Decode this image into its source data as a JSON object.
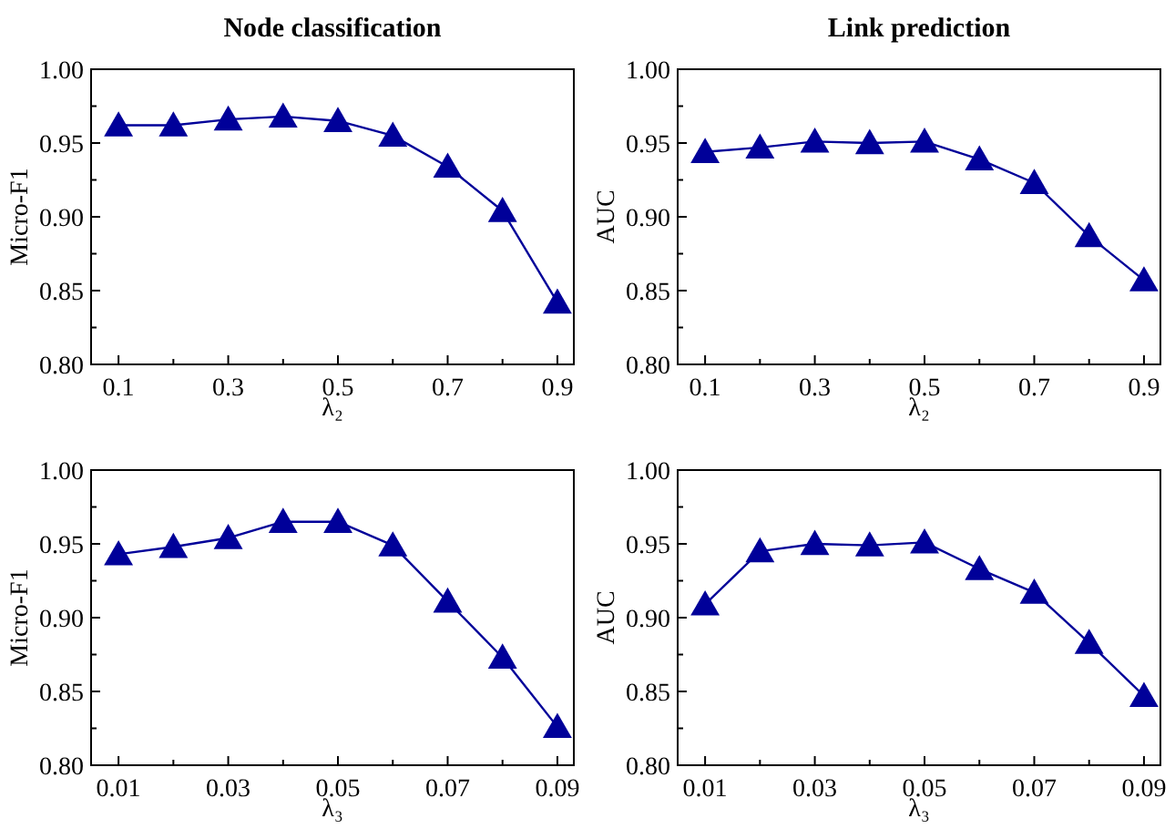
{
  "chart_data": [
    {
      "type": "line",
      "title": "Node classification",
      "xlabel": "λ₂",
      "ylabel": "Micro-F1",
      "x": [
        0.1,
        0.2,
        0.3,
        0.4,
        0.5,
        0.6,
        0.7,
        0.8,
        0.9
      ],
      "marker": "triangle",
      "grid": false,
      "series": [
        {
          "color": "#000099",
          "values": [
            0.962,
            0.962,
            0.966,
            0.968,
            0.965,
            0.955,
            0.934,
            0.904,
            0.842
          ]
        }
      ],
      "xlim": [
        0.05,
        0.93
      ],
      "xticks": [
        {
          "value": 0.1,
          "label": "0.1"
        },
        {
          "value": 0.2,
          "label": null
        },
        {
          "value": 0.3,
          "label": "0.3"
        },
        {
          "value": 0.4,
          "label": null
        },
        {
          "value": 0.5,
          "label": "0.5"
        },
        {
          "value": 0.6,
          "label": null
        },
        {
          "value": 0.7,
          "label": "0.7"
        },
        {
          "value": 0.8,
          "label": null
        },
        {
          "value": 0.9,
          "label": "0.9"
        }
      ],
      "ylim": [
        0.8,
        1.0
      ],
      "yticks": [
        {
          "value": 0.8,
          "label": "0.80"
        },
        {
          "value": 0.825,
          "label": null
        },
        {
          "value": 0.85,
          "label": "0.85"
        },
        {
          "value": 0.875,
          "label": null
        },
        {
          "value": 0.9,
          "label": "0.90"
        },
        {
          "value": 0.925,
          "label": null
        },
        {
          "value": 0.95,
          "label": "0.95"
        },
        {
          "value": 0.975,
          "label": null
        },
        {
          "value": 1.0,
          "label": "1.00"
        }
      ]
    },
    {
      "type": "line",
      "title": "Link prediction",
      "xlabel": "λ₂",
      "ylabel": "AUC",
      "x": [
        0.1,
        0.2,
        0.3,
        0.4,
        0.5,
        0.6,
        0.7,
        0.8,
        0.9
      ],
      "marker": "triangle",
      "grid": false,
      "series": [
        {
          "color": "#000099",
          "values": [
            0.944,
            0.947,
            0.951,
            0.95,
            0.951,
            0.939,
            0.923,
            0.887,
            0.857
          ]
        }
      ],
      "xlim": [
        0.05,
        0.93
      ],
      "xticks": [
        {
          "value": 0.1,
          "label": "0.1"
        },
        {
          "value": 0.2,
          "label": null
        },
        {
          "value": 0.3,
          "label": "0.3"
        },
        {
          "value": 0.4,
          "label": null
        },
        {
          "value": 0.5,
          "label": "0.5"
        },
        {
          "value": 0.6,
          "label": null
        },
        {
          "value": 0.7,
          "label": "0.7"
        },
        {
          "value": 0.8,
          "label": null
        },
        {
          "value": 0.9,
          "label": "0.9"
        }
      ],
      "ylim": [
        0.8,
        1.0
      ],
      "yticks": [
        {
          "value": 0.8,
          "label": "0.80"
        },
        {
          "value": 0.825,
          "label": null
        },
        {
          "value": 0.85,
          "label": "0.85"
        },
        {
          "value": 0.875,
          "label": null
        },
        {
          "value": 0.9,
          "label": "0.90"
        },
        {
          "value": 0.925,
          "label": null
        },
        {
          "value": 0.95,
          "label": "0.95"
        },
        {
          "value": 0.975,
          "label": null
        },
        {
          "value": 1.0,
          "label": "1.00"
        }
      ]
    },
    {
      "type": "line",
      "xlabel": "λ₃",
      "ylabel": "Micro-F1",
      "x": [
        0.01,
        0.02,
        0.03,
        0.04,
        0.05,
        0.06,
        0.07,
        0.08,
        0.09
      ],
      "marker": "triangle",
      "grid": false,
      "series": [
        {
          "color": "#000099",
          "values": [
            0.943,
            0.948,
            0.954,
            0.965,
            0.965,
            0.949,
            0.911,
            0.873,
            0.826
          ]
        }
      ],
      "xlim": [
        0.005,
        0.093
      ],
      "xticks": [
        {
          "value": 0.01,
          "label": "0.01"
        },
        {
          "value": 0.02,
          "label": null
        },
        {
          "value": 0.03,
          "label": "0.03"
        },
        {
          "value": 0.04,
          "label": null
        },
        {
          "value": 0.05,
          "label": "0.05"
        },
        {
          "value": 0.06,
          "label": null
        },
        {
          "value": 0.07,
          "label": "0.07"
        },
        {
          "value": 0.08,
          "label": null
        },
        {
          "value": 0.09,
          "label": "0.09"
        }
      ],
      "ylim": [
        0.8,
        1.0
      ],
      "yticks": [
        {
          "value": 0.8,
          "label": "0.80"
        },
        {
          "value": 0.825,
          "label": null
        },
        {
          "value": 0.85,
          "label": "0.85"
        },
        {
          "value": 0.875,
          "label": null
        },
        {
          "value": 0.9,
          "label": "0.90"
        },
        {
          "value": 0.925,
          "label": null
        },
        {
          "value": 0.95,
          "label": "0.95"
        },
        {
          "value": 0.975,
          "label": null
        },
        {
          "value": 1.0,
          "label": "1.00"
        }
      ]
    },
    {
      "type": "line",
      "xlabel": "λ₃",
      "ylabel": "AUC",
      "x": [
        0.01,
        0.02,
        0.03,
        0.04,
        0.05,
        0.06,
        0.07,
        0.08,
        0.09
      ],
      "marker": "triangle",
      "grid": false,
      "series": [
        {
          "color": "#000099",
          "values": [
            0.909,
            0.945,
            0.95,
            0.949,
            0.951,
            0.933,
            0.917,
            0.883,
            0.847
          ]
        }
      ],
      "xlim": [
        0.005,
        0.093
      ],
      "xticks": [
        {
          "value": 0.01,
          "label": "0.01"
        },
        {
          "value": 0.02,
          "label": null
        },
        {
          "value": 0.03,
          "label": "0.03"
        },
        {
          "value": 0.04,
          "label": null
        },
        {
          "value": 0.05,
          "label": "0.05"
        },
        {
          "value": 0.06,
          "label": null
        },
        {
          "value": 0.07,
          "label": "0.07"
        },
        {
          "value": 0.08,
          "label": null
        },
        {
          "value": 0.09,
          "label": "0.09"
        }
      ],
      "ylim": [
        0.8,
        1.0
      ],
      "yticks": [
        {
          "value": 0.8,
          "label": "0.80"
        },
        {
          "value": 0.825,
          "label": null
        },
        {
          "value": 0.85,
          "label": "0.85"
        },
        {
          "value": 0.875,
          "label": null
        },
        {
          "value": 0.9,
          "label": "0.90"
        },
        {
          "value": 0.925,
          "label": null
        },
        {
          "value": 0.95,
          "label": "0.95"
        },
        {
          "value": 0.975,
          "label": null
        },
        {
          "value": 1.0,
          "label": "1.00"
        }
      ]
    }
  ]
}
